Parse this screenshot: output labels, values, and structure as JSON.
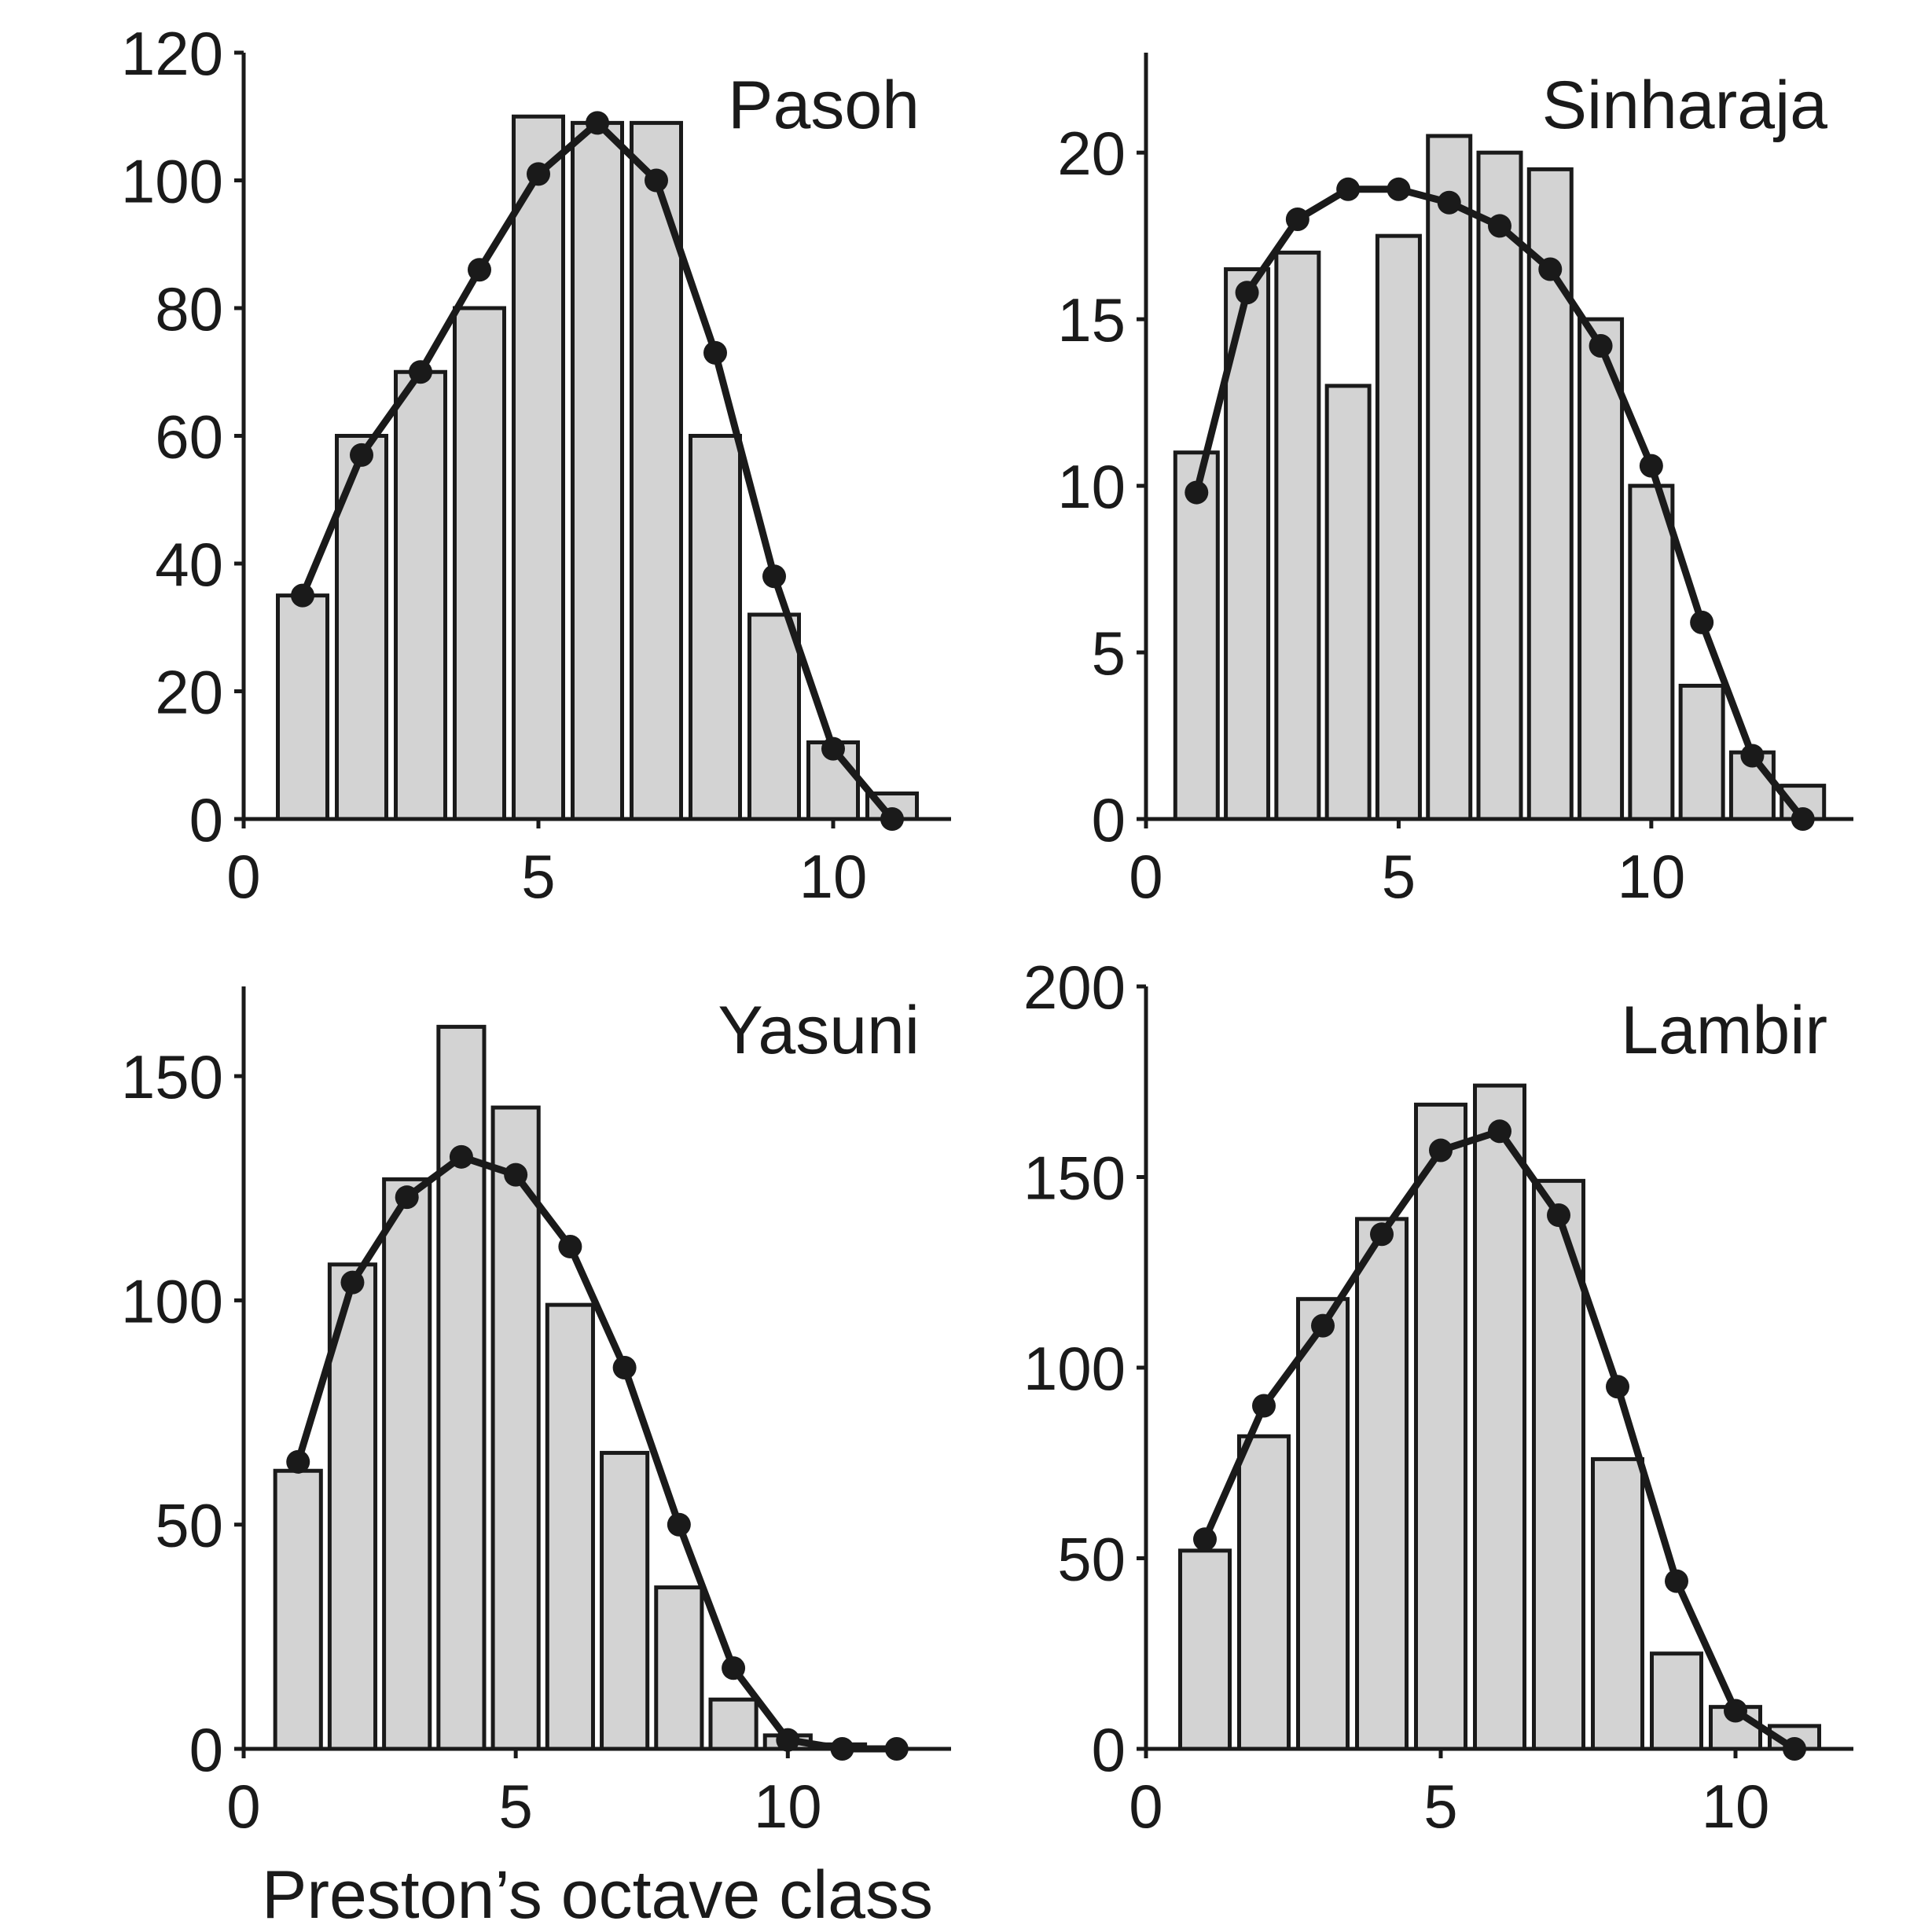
{
  "xlabel": "Preston’s octave class",
  "chart_data": [
    {
      "type": "bar",
      "title": "Pasoh",
      "xlim": [
        0,
        12
      ],
      "ylim": [
        0,
        120
      ],
      "xticks": [
        0,
        5,
        10
      ],
      "yticks": [
        0,
        20,
        40,
        60,
        80,
        100,
        120
      ],
      "bars": {
        "x": [
          1,
          2,
          3,
          4,
          5,
          6,
          7,
          8,
          9,
          10,
          11
        ],
        "values": [
          35,
          60,
          70,
          80,
          110,
          109,
          109,
          60,
          32,
          12,
          4
        ]
      },
      "fit": {
        "x": [
          1,
          2,
          3,
          4,
          5,
          6,
          7,
          8,
          9,
          10,
          11
        ],
        "values": [
          35,
          57,
          70,
          86,
          101,
          109,
          100,
          73,
          38,
          11,
          0
        ]
      }
    },
    {
      "type": "bar",
      "title": "Sinharaja",
      "xlim": [
        0,
        14
      ],
      "ylim": [
        0,
        23
      ],
      "xticks": [
        0,
        5,
        10
      ],
      "yticks": [
        0,
        5,
        10,
        15,
        20
      ],
      "bars": {
        "x": [
          1,
          2,
          3,
          4,
          5,
          6,
          7,
          8,
          9,
          10,
          11,
          12,
          13
        ],
        "values": [
          11,
          16.5,
          17,
          13,
          17.5,
          20.5,
          20,
          19.5,
          15,
          10,
          4,
          2,
          1
        ]
      },
      "fit": {
        "x": [
          1,
          2,
          3,
          4,
          5,
          6,
          7,
          8,
          9,
          10,
          11,
          12,
          13
        ],
        "values": [
          9.8,
          15.8,
          18,
          18.9,
          18.9,
          18.5,
          17.8,
          16.5,
          14.2,
          10.6,
          5.9,
          1.9,
          0
        ]
      }
    },
    {
      "type": "bar",
      "title": "Yasuni",
      "xlim": [
        0,
        13
      ],
      "ylim": [
        0,
        170
      ],
      "xticks": [
        0,
        5,
        10
      ],
      "yticks": [
        0,
        50,
        100,
        150
      ],
      "bars": {
        "x": [
          1,
          2,
          3,
          4,
          5,
          6,
          7,
          8,
          9,
          10,
          11,
          12
        ],
        "values": [
          62,
          108,
          127,
          161,
          143,
          99,
          66,
          36,
          11,
          3,
          1,
          0
        ]
      },
      "fit": {
        "x": [
          1,
          2,
          3,
          4,
          5,
          6,
          7,
          8,
          9,
          10,
          11,
          12
        ],
        "values": [
          64,
          104,
          123,
          132,
          128,
          112,
          85,
          50,
          18,
          2,
          0,
          0
        ]
      }
    },
    {
      "type": "bar",
      "title": "Lambir",
      "xlim": [
        0,
        12
      ],
      "ylim": [
        0,
        200
      ],
      "xticks": [
        0,
        5,
        10
      ],
      "yticks": [
        0,
        50,
        100,
        150,
        200
      ],
      "bars": {
        "x": [
          1,
          2,
          3,
          4,
          5,
          6,
          7,
          8,
          9,
          10,
          11
        ],
        "values": [
          52,
          82,
          118,
          139,
          169,
          174,
          149,
          76,
          25,
          11,
          6
        ]
      },
      "fit": {
        "x": [
          1,
          2,
          3,
          4,
          5,
          6,
          7,
          8,
          9,
          10,
          11
        ],
        "values": [
          55,
          90,
          111,
          135,
          157,
          162,
          140,
          95,
          44,
          10,
          0
        ]
      }
    }
  ]
}
